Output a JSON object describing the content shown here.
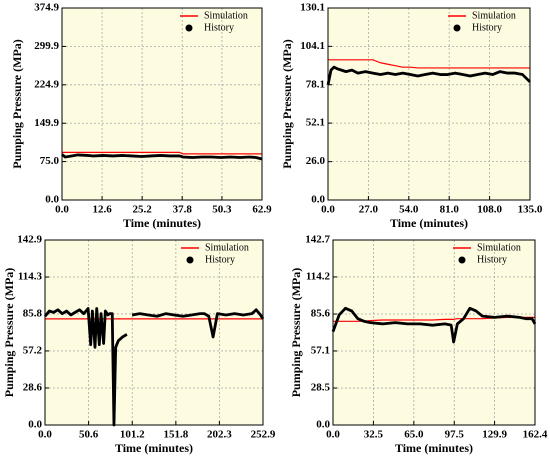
{
  "chart_data": [
    {
      "type": "line",
      "xlabel": "Time (minutes)",
      "ylabel": "Pumping Pressure (MPa)",
      "x": [
        0,
        1,
        3,
        5,
        8,
        10,
        13,
        16,
        19,
        22,
        25,
        28,
        31,
        34,
        37,
        38,
        41,
        44,
        47,
        50,
        53,
        56,
        59,
        61,
        62.9
      ],
      "series": [
        {
          "name": "Simulation",
          "color": "#ff0000",
          "values": [
            93,
            93,
            93,
            93,
            93,
            93,
            93,
            93,
            93,
            93,
            93,
            93,
            93,
            93,
            93,
            90,
            90,
            90,
            90,
            90,
            90,
            90,
            90,
            90,
            90
          ]
        },
        {
          "name": "History",
          "color": "#000000",
          "values": [
            89,
            84,
            86,
            88,
            87,
            86,
            87,
            86,
            87,
            86,
            85,
            86,
            87,
            86,
            86,
            84,
            83,
            84,
            84,
            83,
            84,
            83,
            84,
            83,
            80
          ]
        }
      ],
      "xlim": [
        0,
        62.9
      ],
      "ylim": [
        0,
        374.9
      ],
      "xticks": [
        {
          "value": 0,
          "label": "0.0"
        },
        12.6,
        25.2,
        37.8,
        50.3,
        62.9
      ],
      "yticks": [
        {
          "value": 0,
          "label": "0.0"
        },
        {
          "value": 75,
          "label": "75.0"
        },
        149.9,
        224.9,
        299.9,
        374.9
      ],
      "grid": true,
      "legend": "upper right"
    },
    {
      "type": "line",
      "xlabel": "Time (minutes)",
      "ylabel": "Pumping Pressure (MPa)",
      "x": [
        0,
        2,
        4,
        6,
        9,
        12,
        16,
        20,
        25,
        30,
        35,
        40,
        45,
        50,
        55,
        60,
        65,
        70,
        75,
        80,
        85,
        90,
        95,
        100,
        105,
        110,
        115,
        120,
        125,
        130,
        135
      ],
      "series": [
        {
          "name": "Simulation",
          "color": "#ff0000",
          "values": [
            95,
            95,
            95,
            95,
            95,
            95,
            95,
            95,
            95,
            95,
            93,
            92,
            91,
            90,
            90,
            89.5,
            89.5,
            89.5,
            89.5,
            89.5,
            89.5,
            89.5,
            89.5,
            89.5,
            89.5,
            89.5,
            89.5,
            89.5,
            89.5,
            89.5,
            89.5
          ]
        },
        {
          "name": "History",
          "color": "#000000",
          "values": [
            78,
            88,
            90,
            89,
            88,
            87,
            88,
            86,
            87,
            86,
            85,
            86,
            85,
            86,
            85,
            84,
            85,
            86,
            85,
            85,
            86,
            85,
            84,
            85,
            86,
            85,
            87,
            86,
            86,
            85,
            80
          ]
        }
      ],
      "xlim": [
        0,
        135
      ],
      "ylim": [
        0,
        130.1
      ],
      "xticks": [
        {
          "value": 0,
          "label": "0.0"
        },
        {
          "value": 27,
          "label": "27.0"
        },
        {
          "value": 54,
          "label": "54.0"
        },
        {
          "value": 81,
          "label": "81.0"
        },
        {
          "value": 108,
          "label": "108.0"
        },
        {
          "value": 135,
          "label": "135.0"
        }
      ],
      "yticks": [
        {
          "value": 0,
          "label": "0.0"
        },
        {
          "value": 26,
          "label": "26.0"
        },
        52.1,
        78.1,
        104.1,
        130.1
      ],
      "grid": true,
      "legend": "upper right"
    },
    {
      "type": "line",
      "xlabel": "Time (minutes)",
      "ylabel": "Pumping Pressure (MPa)",
      "x": [
        0,
        5,
        10,
        15,
        20,
        25,
        30,
        35,
        40,
        45,
        50,
        53,
        55,
        58,
        60,
        63,
        65,
        68,
        70,
        73,
        75,
        78,
        80,
        82,
        85,
        90,
        95,
        98,
        101,
        110,
        120,
        130,
        140,
        150,
        160,
        170,
        180,
        185,
        190,
        195,
        200,
        210,
        220,
        230,
        240,
        245,
        250,
        252.9
      ],
      "series": [
        {
          "name": "Simulation",
          "color": "#ff0000",
          "values": [
            82,
            82,
            82,
            82,
            82,
            82,
            82,
            82,
            82,
            82,
            82,
            82,
            82,
            82,
            82,
            82,
            82,
            82,
            82,
            82,
            82,
            82,
            82,
            82,
            82,
            82,
            82,
            82,
            82,
            82,
            82,
            82,
            82,
            82,
            82,
            82,
            82,
            82,
            82,
            82,
            82,
            82,
            82,
            82,
            82,
            82,
            82,
            82
          ]
        },
        {
          "name": "History",
          "color": "#000000",
          "values": [
            84,
            88,
            87,
            89,
            86,
            88,
            85,
            87,
            89,
            86,
            90,
            62,
            88,
            60,
            90,
            62,
            86,
            63,
            88,
            85,
            86,
            86,
            0,
            60,
            65,
            68,
            70,
            null,
            85,
            86,
            85,
            84,
            86,
            85,
            84,
            85,
            86,
            86,
            84,
            68,
            86,
            85,
            86,
            85,
            86,
            89,
            85,
            82
          ]
        }
      ],
      "xlim": [
        0,
        252.9
      ],
      "ylim": [
        0,
        142.9
      ],
      "xticks": [
        {
          "value": 0,
          "label": "0.0"
        },
        50.6,
        101.2,
        151.8,
        202.3,
        252.9
      ],
      "yticks": [
        {
          "value": 0,
          "label": "0.0"
        },
        28.6,
        57.2,
        85.8,
        114.3,
        142.9
      ],
      "grid": true,
      "legend": "upper right"
    },
    {
      "type": "line",
      "xlabel": "Time (minutes)",
      "ylabel": "Pumping Pressure (MPa)",
      "x": [
        0,
        5,
        10,
        15,
        20,
        25,
        30,
        40,
        50,
        60,
        70,
        80,
        90,
        95,
        97,
        100,
        105,
        110,
        115,
        120,
        130,
        140,
        150,
        155,
        160,
        162.4
      ],
      "series": [
        {
          "name": "Simulation",
          "color": "#ff0000",
          "values": [
            80,
            80,
            80,
            80,
            80,
            80,
            80.5,
            81,
            81,
            81,
            81,
            81,
            81.5,
            81.5,
            81.5,
            82,
            82,
            82,
            82,
            82,
            82.5,
            83,
            83,
            83,
            83,
            83
          ]
        },
        {
          "name": "History",
          "color": "#000000",
          "values": [
            72,
            85,
            90,
            88,
            82,
            80,
            79,
            78,
            79,
            78,
            78,
            77,
            78,
            77,
            64,
            78,
            82,
            90,
            88,
            84,
            83,
            84,
            83,
            82,
            82,
            78
          ]
        }
      ],
      "xlim": [
        0,
        162.4
      ],
      "ylim": [
        0,
        142.7
      ],
      "xticks": [
        {
          "value": 0,
          "label": "0.0"
        },
        32.5,
        {
          "value": 65,
          "label": "65.0"
        },
        97.5,
        129.9,
        162.4
      ],
      "yticks": [
        {
          "value": 0,
          "label": "0.0"
        },
        28.5,
        57.1,
        85.6,
        114.2,
        142.7
      ],
      "grid": true,
      "legend": "upper right"
    }
  ]
}
